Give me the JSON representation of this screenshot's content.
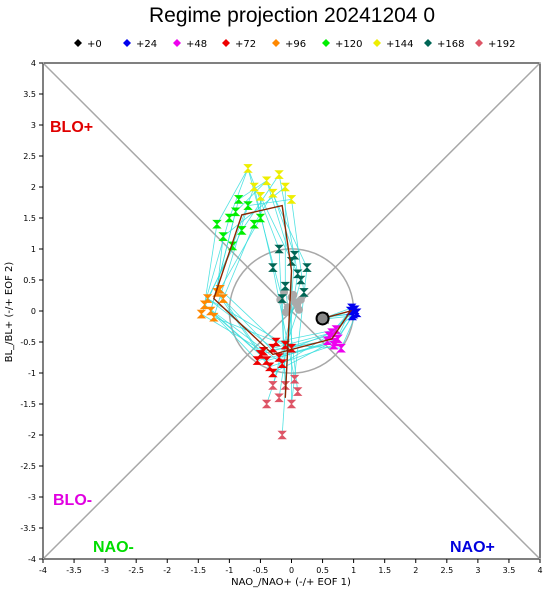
{
  "chart_data": {
    "type": "scatter",
    "title": "Regime projection 20241204 0",
    "xlabel": "NAO_/NAO+ (-/+ EOF 1)",
    "ylabel": "BL_/BL+ (-/+ EOF 2)",
    "xlim": [
      -4,
      4
    ],
    "ylim": [
      -4,
      4
    ],
    "x_ticks": [
      "-4",
      "-3.5",
      "-3",
      "-2.5",
      "-2",
      "-1.5",
      "-1",
      "-0.5",
      "0",
      "0.5",
      "1",
      "1.5",
      "2",
      "2.5",
      "3",
      "3.5",
      "4"
    ],
    "y_ticks": [
      "-4",
      "-3.5",
      "-3",
      "-2.5",
      "-2",
      "-1.5",
      "-1",
      "-0.5",
      "0",
      "0.5",
      "1",
      "1.5",
      "2",
      "2.5",
      "3",
      "3.5",
      "4"
    ],
    "grid": false,
    "legend_position": "top",
    "reference_circle_radius": 1,
    "regions": [
      {
        "label": "BLO+",
        "color": "#e00000"
      },
      {
        "label": "BLO-",
        "color": "#e000e0"
      },
      {
        "label": "NAO-",
        "color": "#00dd00"
      },
      {
        "label": "NAO+",
        "color": "#0000dd"
      }
    ],
    "series": [
      {
        "name": "+0",
        "color": "#000000",
        "points": [
          [
            0.5,
            -0.12
          ],
          [
            0.52,
            -0.1
          ],
          [
            0.49,
            -0.14
          ],
          [
            0.53,
            -0.13
          ],
          [
            0.48,
            -0.11
          ]
        ]
      },
      {
        "name": "+24",
        "color": "#0000ee",
        "points": [
          [
            0.95,
            0.0
          ],
          [
            1.0,
            -0.05
          ],
          [
            1.02,
            0.02
          ],
          [
            0.98,
            -0.08
          ],
          [
            1.05,
            -0.03
          ],
          [
            0.97,
            0.05
          ]
        ]
      },
      {
        "name": "+48",
        "color": "#ee00ee",
        "points": [
          [
            0.6,
            -0.4
          ],
          [
            0.7,
            -0.5
          ],
          [
            0.65,
            -0.35
          ],
          [
            0.75,
            -0.45
          ],
          [
            0.8,
            -0.6
          ],
          [
            0.68,
            -0.55
          ],
          [
            0.58,
            -0.48
          ],
          [
            0.72,
            -0.3
          ]
        ]
      },
      {
        "name": "+72",
        "color": "#ee0000",
        "points": [
          [
            -0.5,
            -0.7
          ],
          [
            -0.4,
            -0.8
          ],
          [
            -0.3,
            -0.6
          ],
          [
            -0.2,
            -0.75
          ],
          [
            -0.1,
            -0.55
          ],
          [
            -0.35,
            -0.9
          ],
          [
            -0.45,
            -0.65
          ],
          [
            -0.25,
            -0.5
          ],
          [
            -0.15,
            -0.85
          ],
          [
            -0.55,
            -0.8
          ],
          [
            0.0,
            -0.6
          ],
          [
            -0.3,
            -1.0
          ]
        ]
      },
      {
        "name": "+96",
        "color": "#ff8800",
        "points": [
          [
            -1.4,
            0.1
          ],
          [
            -1.3,
            0.0
          ],
          [
            -1.35,
            0.2
          ],
          [
            -1.2,
            0.3
          ],
          [
            -1.25,
            -0.1
          ],
          [
            -1.1,
            0.2
          ],
          [
            -1.45,
            -0.05
          ],
          [
            -1.15,
            0.35
          ]
        ]
      },
      {
        "name": "+120",
        "color": "#00ee00",
        "points": [
          [
            -1.0,
            1.5
          ],
          [
            -0.9,
            1.6
          ],
          [
            -0.8,
            1.3
          ],
          [
            -1.1,
            1.2
          ],
          [
            -0.7,
            1.7
          ],
          [
            -0.6,
            1.4
          ],
          [
            -0.95,
            1.05
          ],
          [
            -0.5,
            1.5
          ],
          [
            -1.2,
            1.4
          ],
          [
            -0.85,
            1.8
          ]
        ]
      },
      {
        "name": "+144",
        "color": "#eeee00",
        "points": [
          [
            -0.7,
            2.3
          ],
          [
            -0.4,
            2.1
          ],
          [
            -0.2,
            2.2
          ],
          [
            -0.1,
            2.0
          ],
          [
            0.0,
            1.8
          ],
          [
            -0.3,
            1.9
          ],
          [
            -0.6,
            2.0
          ],
          [
            -0.5,
            1.85
          ]
        ]
      },
      {
        "name": "+168",
        "color": "#006655",
        "points": [
          [
            -0.2,
            1.0
          ],
          [
            0.0,
            0.8
          ],
          [
            0.1,
            0.6
          ],
          [
            -0.1,
            0.4
          ],
          [
            0.2,
            0.3
          ],
          [
            0.05,
            0.9
          ],
          [
            -0.3,
            0.7
          ],
          [
            0.15,
            0.5
          ],
          [
            -0.15,
            0.2
          ],
          [
            0.25,
            0.7
          ]
        ]
      },
      {
        "name": "+192",
        "color": "#dd5566",
        "points": [
          [
            -0.1,
            -1.2
          ],
          [
            0.0,
            -1.5
          ],
          [
            -0.2,
            -1.4
          ],
          [
            0.1,
            -1.3
          ],
          [
            -0.4,
            -1.5
          ],
          [
            -0.15,
            -2.0
          ],
          [
            0.05,
            -1.1
          ],
          [
            -0.3,
            -1.2
          ]
        ]
      }
    ],
    "mean_track": [
      [
        0.5,
        -0.12
      ],
      [
        0.95,
        0.0
      ],
      [
        0.65,
        -0.45
      ],
      [
        -0.3,
        -0.7
      ],
      [
        -1.25,
        0.2
      ],
      [
        -0.8,
        1.55
      ],
      [
        -0.15,
        1.7
      ],
      [
        0.0,
        0.65
      ],
      [
        -0.1,
        -1.4
      ]
    ]
  }
}
